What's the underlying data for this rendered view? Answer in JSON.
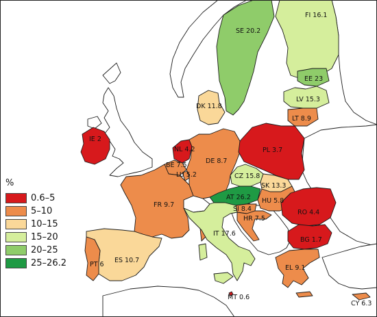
{
  "legend": {
    "title": "%",
    "classes": [
      {
        "label": "0.6–5",
        "color": "#d7191c"
      },
      {
        "label": "5–10",
        "color": "#ed8c4b"
      },
      {
        "label": "10–15",
        "color": "#fad899"
      },
      {
        "label": "15–20",
        "color": "#d5ee9c"
      },
      {
        "label": "20–25",
        "color": "#8fcc6a"
      },
      {
        "label": "25–26.2",
        "color": "#1f9a44"
      }
    ]
  },
  "countries": [
    {
      "code": "IE",
      "label": "IE 2",
      "value": 2,
      "class": 0
    },
    {
      "code": "NL",
      "label": "NL 4.2",
      "value": 4.2,
      "class": 0
    },
    {
      "code": "BE",
      "label": "BE 7.5",
      "value": 7.5,
      "class": 1
    },
    {
      "code": "LU",
      "label": "LU 5.2",
      "value": 5.2,
      "class": 1
    },
    {
      "code": "DE",
      "label": "DE 8.7",
      "value": 8.7,
      "class": 1
    },
    {
      "code": "DK",
      "label": "DK 11.8",
      "value": 11.8,
      "class": 2
    },
    {
      "code": "PL",
      "label": "PL 3.7",
      "value": 3.7,
      "class": 0
    },
    {
      "code": "CZ",
      "label": "CZ 15.8",
      "value": 15.8,
      "class": 3
    },
    {
      "code": "SK",
      "label": "SK 13.3",
      "value": 13.3,
      "class": 2
    },
    {
      "code": "AT",
      "label": "AT 26.2",
      "value": 26.2,
      "class": 5
    },
    {
      "code": "HU",
      "label": "HU 5.8",
      "value": 5.8,
      "class": 1
    },
    {
      "code": "SI",
      "label": "SI 8.4",
      "value": 8.4,
      "class": 1
    },
    {
      "code": "HR",
      "label": "HR 7.5",
      "value": 7.5,
      "class": 1
    },
    {
      "code": "RO",
      "label": "RO 4.4",
      "value": 4.4,
      "class": 0
    },
    {
      "code": "BG",
      "label": "BG 1.7",
      "value": 1.7,
      "class": 0
    },
    {
      "code": "EL",
      "label": "EL 9.1",
      "value": 9.1,
      "class": 1
    },
    {
      "code": "FR",
      "label": "FR 9.7",
      "value": 9.7,
      "class": 1
    },
    {
      "code": "ES",
      "label": "ES 10.7",
      "value": 10.7,
      "class": 2
    },
    {
      "code": "PT",
      "label": "PT 6",
      "value": 6,
      "class": 1
    },
    {
      "code": "IT",
      "label": "IT 17.6",
      "value": 17.6,
      "class": 3
    },
    {
      "code": "MT",
      "label": "MT 0.6",
      "value": 0.6,
      "class": 0
    },
    {
      "code": "CY",
      "label": "CY 6.3",
      "value": 6.3,
      "class": 1
    },
    {
      "code": "SE",
      "label": "SE 20.2",
      "value": 20.2,
      "class": 4
    },
    {
      "code": "FI",
      "label": "FI 16.1",
      "value": 16.1,
      "class": 3
    },
    {
      "code": "EE",
      "label": "EE 23",
      "value": 23,
      "class": 4
    },
    {
      "code": "LV",
      "label": "LV 15.3",
      "value": 15.3,
      "class": 3
    },
    {
      "code": "LT",
      "label": "LT 8.9",
      "value": 8.9,
      "class": 1
    }
  ]
}
